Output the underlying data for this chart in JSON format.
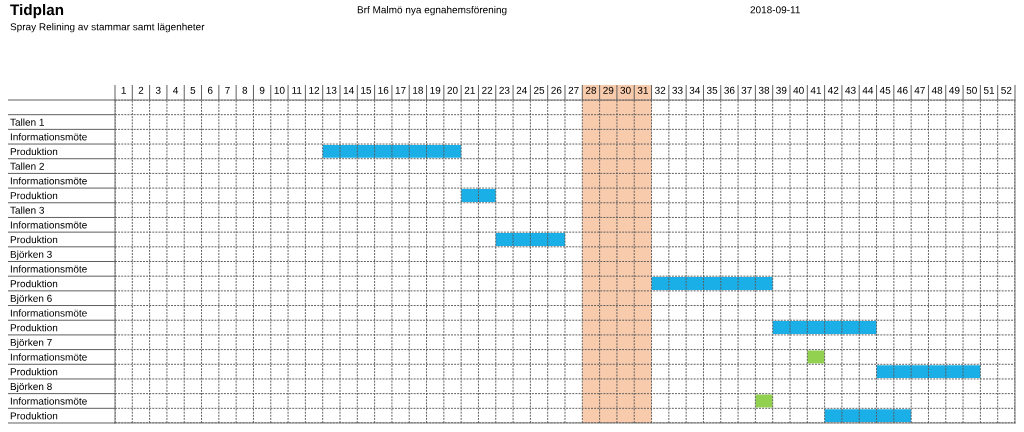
{
  "chart_data": {
    "type": "bar",
    "orientation": "horizontal",
    "title": "Tidplan",
    "subtitle": "Spray Relining av stammar samt lägenheter",
    "annotations": [
      "Brf Malmö nya egnahemsförening",
      "2018-09-11"
    ],
    "categories": [
      null,
      "Tallen 1",
      "Informationsmöte",
      "Produktion",
      "Tallen 2",
      "Informationsmöte",
      "Produktion",
      "Tallen 3",
      "Informationsmöte",
      "Produktion",
      "Björken 3",
      "Informationsmöte",
      "Produktion",
      "Björken 6",
      "Informationsmöte",
      "Produktion",
      "Björken 7",
      "Informationsmöte",
      "Produktion",
      "Björken 8",
      "Informationsmöte",
      "Produktion"
    ],
    "values": [
      null,
      null,
      null,
      8,
      null,
      null,
      2,
      null,
      null,
      4,
      null,
      null,
      7,
      null,
      null,
      6,
      null,
      1,
      6,
      null,
      1,
      5
    ],
    "base": [
      null,
      null,
      null,
      12.5,
      null,
      null,
      20.5,
      null,
      null,
      22.5,
      null,
      null,
      31.5,
      null,
      null,
      38.5,
      null,
      40.5,
      44.5,
      null,
      37.5,
      41.5
    ],
    "colors": [
      null,
      null,
      null,
      "#1bafe8",
      null,
      null,
      "#1bafe8",
      null,
      null,
      "#1bafe8",
      null,
      null,
      "#1bafe8",
      null,
      null,
      "#1bafe8",
      null,
      "#92d050",
      "#1bafe8",
      null,
      "#92d050",
      "#1bafe8"
    ],
    "xlim": [
      0.5,
      52.5
    ],
    "xticks": [
      1,
      2,
      3,
      4,
      5,
      6,
      7,
      8,
      9,
      10,
      11,
      12,
      13,
      14,
      15,
      16,
      17,
      18,
      19,
      20,
      21,
      22,
      23,
      24,
      25,
      26,
      27,
      28,
      29,
      30,
      31,
      32,
      33,
      34,
      35,
      36,
      37,
      38,
      39,
      40,
      41,
      42,
      43,
      44,
      45,
      46,
      47,
      48,
      49,
      50,
      51,
      52
    ],
    "bands": [
      {
        "axis": "x",
        "from": 27.5,
        "to": 31.5,
        "color": "#f8cbad"
      }
    ],
    "grid": true
  }
}
